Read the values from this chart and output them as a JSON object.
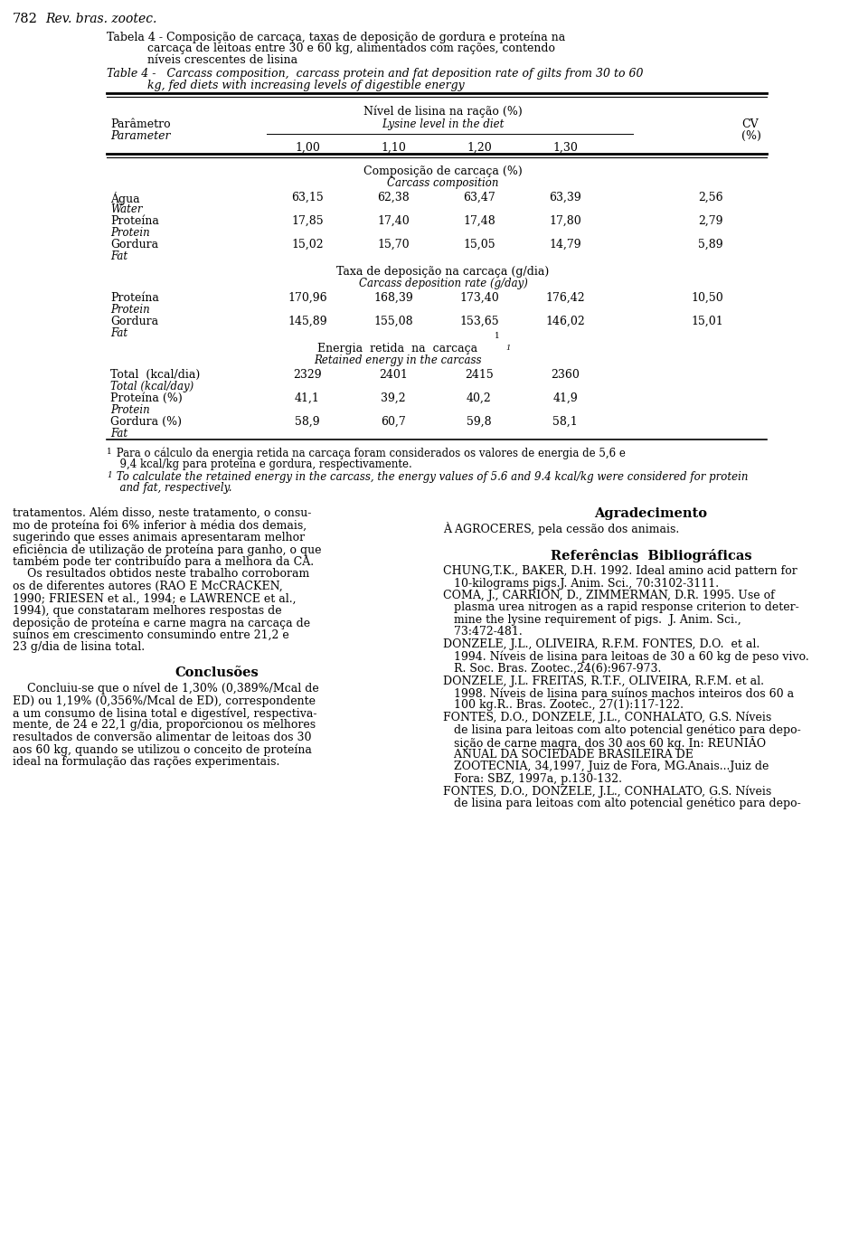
{
  "page_number": "782",
  "journal": "Rev. bras. zootec.",
  "bg_color": "#ffffff",
  "text_color": "#000000",
  "lysine_levels": [
    "1,00",
    "1,10",
    "1,20",
    "1,30"
  ],
  "rows_sec1": [
    {
      "pt": "Água",
      "en": "Water",
      "v": [
        "63,15",
        "62,38",
        "63,47",
        "63,39"
      ],
      "cv": "2,56"
    },
    {
      "pt": "Proteína",
      "en": "Protein",
      "v": [
        "17,85",
        "17,40",
        "17,48",
        "17,80"
      ],
      "cv": "2,79"
    },
    {
      "pt": "Gordura",
      "en": "Fat",
      "v": [
        "15,02",
        "15,70",
        "15,05",
        "14,79"
      ],
      "cv": "5,89"
    }
  ],
  "rows_sec2": [
    {
      "pt": "Proteína",
      "en": "Protein",
      "v": [
        "170,96",
        "168,39",
        "173,40",
        "176,42"
      ],
      "cv": "10,50"
    },
    {
      "pt": "Gordura",
      "en": "Fat",
      "v": [
        "145,89",
        "155,08",
        "153,65",
        "146,02"
      ],
      "cv": "15,01"
    }
  ],
  "rows_sec3": [
    {
      "pt": "Total  (kcal/dia)",
      "en": "Total (kcal/day)",
      "v": [
        "2329",
        "2401",
        "2415",
        "2360"
      ],
      "cv": ""
    },
    {
      "pt": "Proteína (%)",
      "en": "Protein",
      "v": [
        "41,1",
        "39,2",
        "40,2",
        "41,9"
      ],
      "cv": ""
    },
    {
      "pt": "Gordura (%)",
      "en": "Fat",
      "v": [
        "58,9",
        "60,7",
        "59,8",
        "58,1"
      ],
      "cv": ""
    }
  ],
  "left_col_lines": [
    "tratamentos. Além disso, neste tratamento, o consu-",
    "mo de proteína foi 6% inferior à média dos demais,",
    "sugerindo que esses animais apresentaram melhor",
    "eficiência de utilização de proteína para ganho, o que",
    "também pode ter contribuído para a melhora da CA.",
    "    Os resultados obtidos neste trabalho corroboram",
    "os de diferentes autores (RAO E McCRACKEN,",
    "1990; FRIESEN et al., 1994; e LAWRENCE et al.,",
    "1994), que constataram melhores respostas de",
    "deposição de proteína e carne magra na carcaça de",
    "suínos em crescimento consumindo entre 21,2 e",
    "23 g/dia de lisina total."
  ],
  "conclusoes_lines": [
    "    Concluiu-se que o nível de 1,30% (0,389%/Mcal de",
    "ED) ou 1,19% (0,356%/Mcal de ED), correspondente",
    "a um consumo de lisina total e digestível, respectiva-",
    "mente, de 24 e 22,1 g/dia, proporcionou os melhores",
    "resultados de conversão alimentar de leitoas dos 30",
    "aos 60 kg, quando se utilizou o conceito de proteína",
    "ideal na formulação das rações experimentais."
  ],
  "ref_lines": [
    "CHUNG,T.K., BAKER, D.H. 1992. Ideal amino acid pattern for",
    "   10-kilograms pigs.J. Anim. Sci., 70:3102-3111.",
    "COMA, J., CARRION, D., ZIMMERMAN, D.R. 1995. Use of",
    "   plasma urea nitrogen as a rapid response criterion to deter-",
    "   mine the lysine requirement of pigs.  J. Anim. Sci.,",
    "   73:472-481.",
    "DONZELE, J.L., OLIVEIRA, R.F.M. FONTES, D.O.  et al.",
    "   1994. Níveis de lisina para leitoas de 30 a 60 kg de peso vivo.",
    "   R. Soc. Bras. Zootec.,24(6):967-973.",
    "DONZELE, J.L. FREITAS, R.T.F., OLIVEIRA, R.F.M. et al.",
    "   1998. Níveis de lisina para suínos machos inteiros dos 60 a",
    "   100 kg.R.. Bras. Zootec., 27(1):117-122.",
    "FONTES, D.O., DONZELE, J.L., CONHALATO, G.S. Níveis",
    "   de lisina para leitoas com alto potencial genético para depo-",
    "   sição de carne magra, dos 30 aos 60 kg. In: REUNIÃO",
    "   ANUAL DA SOCIEDADE BRASILEIRA DE",
    "   ZOOTECNIA, 34,1997, Juiz de Fora, MG.Anais...Juiz de",
    "   Fora: SBZ, 1997a, p.130-132.",
    "FONTES, D.O., DONZELE, J.L., CONHALATO, G.S. Níveis",
    "   de lisina para leitoas com alto potencial genético para depo-"
  ]
}
